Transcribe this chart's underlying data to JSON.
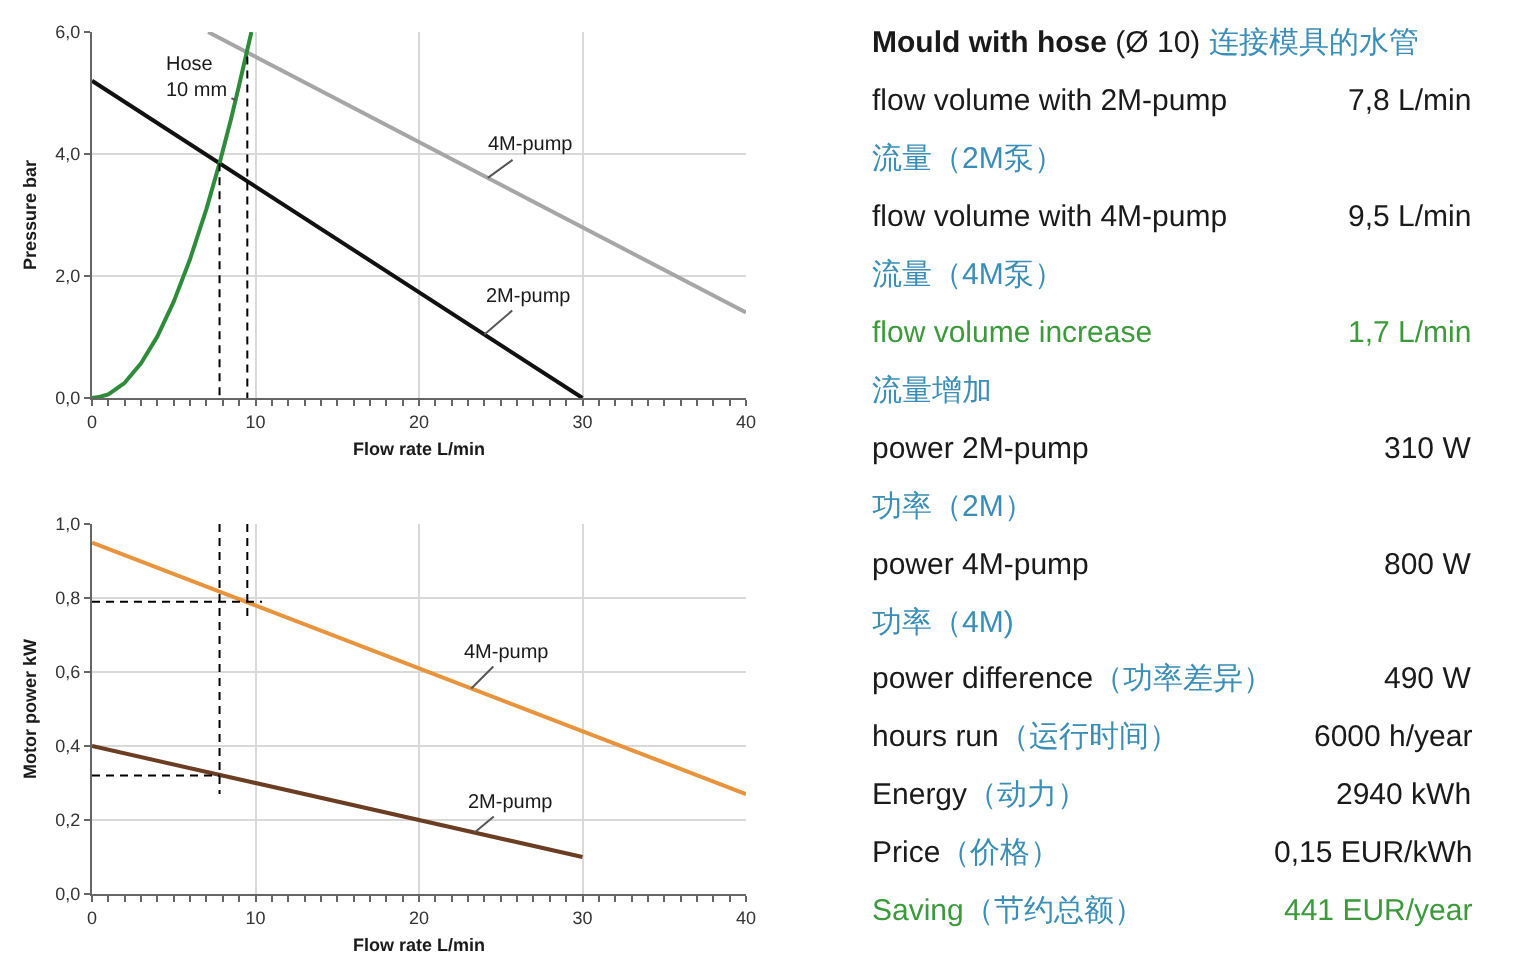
{
  "chart_data": [
    {
      "type": "line",
      "xlabel": "Flow rate L/min",
      "ylabel": "Pressure bar",
      "xlim": [
        0,
        40
      ],
      "ylim": [
        0,
        6
      ],
      "xticks": [
        0,
        {
          "value": 1,
          "label": null
        },
        {
          "value": 2,
          "label": null
        },
        {
          "value": 3,
          "label": null
        },
        {
          "value": 4,
          "label": null
        },
        {
          "value": 5,
          "label": null
        },
        {
          "value": 6,
          "label": null
        },
        {
          "value": 7,
          "label": null
        },
        {
          "value": 8,
          "label": null
        },
        {
          "value": 9,
          "label": null
        },
        10,
        {
          "value": 11,
          "label": null
        },
        {
          "value": 12,
          "label": null
        },
        {
          "value": 13,
          "label": null
        },
        {
          "value": 14,
          "label": null
        },
        {
          "value": 15,
          "label": null
        },
        {
          "value": 16,
          "label": null
        },
        {
          "value": 17,
          "label": null
        },
        {
          "value": 18,
          "label": null
        },
        {
          "value": 19,
          "label": null
        },
        20,
        {
          "value": 21,
          "label": null
        },
        {
          "value": 22,
          "label": null
        },
        {
          "value": 23,
          "label": null
        },
        {
          "value": 24,
          "label": null
        },
        {
          "value": 25,
          "label": null
        },
        {
          "value": 26,
          "label": null
        },
        {
          "value": 27,
          "label": null
        },
        {
          "value": 28,
          "label": null
        },
        {
          "value": 29,
          "label": null
        },
        30,
        {
          "value": 31,
          "label": null
        },
        {
          "value": 32,
          "label": null
        },
        {
          "value": 33,
          "label": null
        },
        {
          "value": 34,
          "label": null
        },
        {
          "value": 35,
          "label": null
        },
        {
          "value": 36,
          "label": null
        },
        {
          "value": 37,
          "label": null
        },
        {
          "value": 38,
          "label": null
        },
        {
          "value": 39,
          "label": null
        },
        40
      ],
      "yticks": [
        {
          "value": 0,
          "label": "0,0"
        },
        {
          "value": 2,
          "label": "2,0"
        },
        {
          "value": 4,
          "label": "4,0"
        },
        {
          "value": 6,
          "label": "6,0"
        }
      ],
      "grid": true,
      "series": [
        {
          "name": "4M-pump",
          "color": "#a6a6a6",
          "x": [
            7.1,
            40
          ],
          "values": [
            6.0,
            1.4
          ]
        },
        {
          "name": "2M-pump",
          "color": "#111111",
          "x": [
            0,
            30
          ],
          "values": [
            5.2,
            0
          ]
        },
        {
          "name": "Hose\n10 mm",
          "color": "#2e8b3a",
          "x": [
            0,
            0.5,
            1,
            2,
            3,
            4,
            5,
            6,
            7,
            7.8,
            8.5,
            9,
            9.75
          ],
          "values": [
            0,
            0.02,
            0.06,
            0.25,
            0.57,
            1.01,
            1.58,
            2.28,
            3.1,
            3.85,
            4.57,
            5.13,
            6.0
          ]
        },
        {
          "color": "#000000",
          "line_style": "dashed",
          "x": [
            7.8,
            7.8
          ],
          "values": [
            3.85,
            0
          ]
        },
        {
          "color": "#000000",
          "line_style": "dashed",
          "x": [
            9.5,
            9.5
          ],
          "values": [
            5.6,
            0
          ]
        }
      ]
    },
    {
      "type": "line",
      "xlabel": "Flow rate L/min",
      "ylabel": "Motor power kW",
      "xlim": [
        0,
        40
      ],
      "ylim": [
        0,
        1
      ],
      "xticks": [
        0,
        {
          "value": 1,
          "label": null
        },
        {
          "value": 2,
          "label": null
        },
        {
          "value": 3,
          "label": null
        },
        {
          "value": 4,
          "label": null
        },
        {
          "value": 5,
          "label": null
        },
        {
          "value": 6,
          "label": null
        },
        {
          "value": 7,
          "label": null
        },
        {
          "value": 8,
          "label": null
        },
        {
          "value": 9,
          "label": null
        },
        10,
        {
          "value": 11,
          "label": null
        },
        {
          "value": 12,
          "label": null
        },
        {
          "value": 13,
          "label": null
        },
        {
          "value": 14,
          "label": null
        },
        {
          "value": 15,
          "label": null
        },
        {
          "value": 16,
          "label": null
        },
        {
          "value": 17,
          "label": null
        },
        {
          "value": 18,
          "label": null
        },
        {
          "value": 19,
          "label": null
        },
        20,
        {
          "value": 21,
          "label": null
        },
        {
          "value": 22,
          "label": null
        },
        {
          "value": 23,
          "label": null
        },
        {
          "value": 24,
          "label": null
        },
        {
          "value": 25,
          "label": null
        },
        {
          "value": 26,
          "label": null
        },
        {
          "value": 27,
          "label": null
        },
        {
          "value": 28,
          "label": null
        },
        {
          "value": 29,
          "label": null
        },
        30,
        {
          "value": 31,
          "label": null
        },
        {
          "value": 32,
          "label": null
        },
        {
          "value": 33,
          "label": null
        },
        {
          "value": 34,
          "label": null
        },
        {
          "value": 35,
          "label": null
        },
        {
          "value": 36,
          "label": null
        },
        {
          "value": 37,
          "label": null
        },
        {
          "value": 38,
          "label": null
        },
        {
          "value": 39,
          "label": null
        },
        40
      ],
      "yticks": [
        {
          "value": 0,
          "label": "0,0"
        },
        {
          "value": 0.2,
          "label": "0,2"
        },
        {
          "value": 0.4,
          "label": "0,4"
        },
        {
          "value": 0.6,
          "label": "0,6"
        },
        {
          "value": 0.8,
          "label": "0,8"
        },
        {
          "value": 1,
          "label": "1,0"
        }
      ],
      "grid": true,
      "series": [
        {
          "name": "4M-pump",
          "color": "#e9943c",
          "x": [
            0,
            40
          ],
          "values": [
            0.95,
            0.27
          ]
        },
        {
          "name": "2M-pump",
          "color": "#6b3d22",
          "x": [
            0,
            30
          ],
          "values": [
            0.4,
            0.1
          ]
        },
        {
          "color": "#000000",
          "line_style": "dashed",
          "x": [
            7.8,
            7.8
          ],
          "values": [
            1.0,
            0.27
          ]
        },
        {
          "color": "#000000",
          "line_style": "dashed",
          "x": [
            9.5,
            9.5
          ],
          "values": [
            1.0,
            0.75
          ]
        },
        {
          "color": "#000000",
          "line_style": "dashed",
          "x": [
            0,
            10.4
          ],
          "values": [
            0.79,
            0.79
          ]
        },
        {
          "color": "#000000",
          "line_style": "dashed",
          "x": [
            0,
            7.8
          ],
          "values": [
            0.32,
            0.32
          ]
        }
      ]
    },
    {
      "type": "other",
      "title": "Mould with hose (Ø 10) 连接模具的水管",
      "categories": [
        "flow volume with 2M-pump",
        "流量（2M泵）",
        "flow volume with 4M-pump",
        "流量（4M泵）",
        "flow volume increase",
        "流量增加",
        "power 2M-pump",
        "功率（2M）",
        "power 4M-pump",
        "功率（4M)",
        "power difference（功率差异）",
        "hours run（运行时间）",
        "Energy（动力）",
        "Price（价格）",
        "Saving（节约总额）"
      ],
      "value_labels": [
        "7,8 L/min",
        null,
        "9,5 L/min",
        null,
        "1,7 L/min",
        null,
        "310 W",
        null,
        "800 W",
        null,
        "490 W",
        "6000 h/year",
        "2940 kWh",
        "0,15 EUR/kWh",
        "441 EUR/year"
      ],
      "colors": [
        "#1a1a1a",
        "#1a1a1a",
        "#1a1a1a",
        "#1a1a1a",
        "#3c9a3c",
        "#1a1a1a",
        "#1a1a1a",
        "#1a1a1a",
        "#1a1a1a",
        "#1a1a1a",
        "#1a1a1a",
        "#1a1a1a",
        "#1a1a1a",
        "#1a1a1a",
        "#3c9a3c"
      ]
    }
  ]
}
